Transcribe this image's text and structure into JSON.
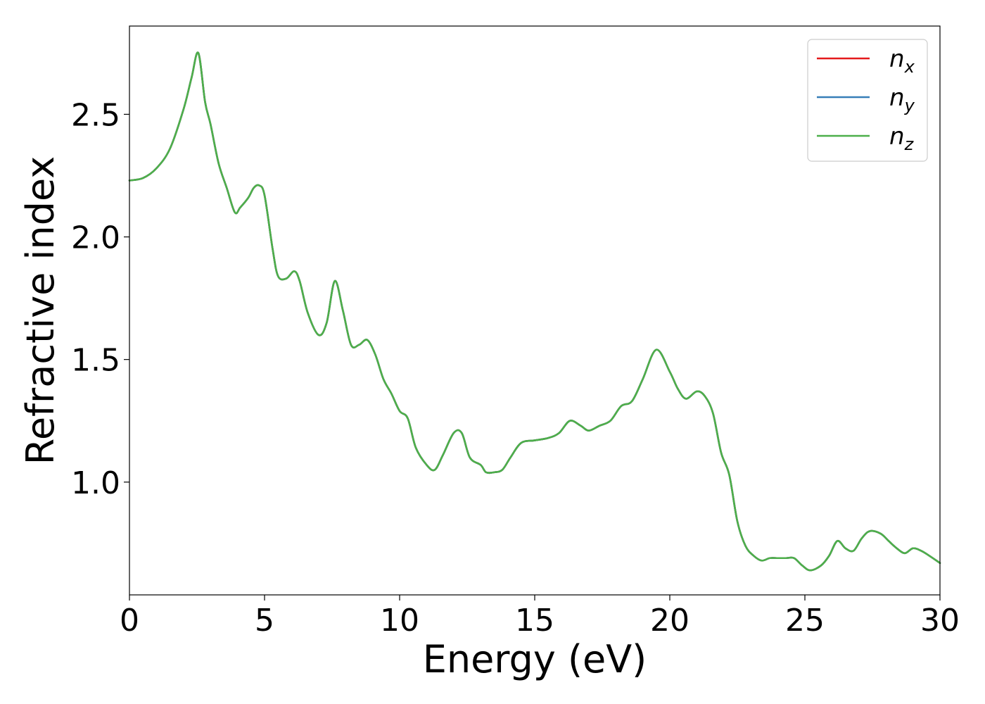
{
  "chart_data": {
    "type": "line",
    "xlabel": "Energy (eV)",
    "ylabel": "Refractive index",
    "xlim": [
      0,
      30
    ],
    "ylim": [
      0.54,
      2.86
    ],
    "xticks": [
      0,
      5,
      10,
      15,
      20,
      25,
      30
    ],
    "xtick_labels": [
      "0",
      "5",
      "10",
      "15",
      "20",
      "25",
      "30"
    ],
    "yticks": [
      1.0,
      1.5,
      2.0,
      2.5
    ],
    "ytick_labels": [
      "1.0",
      "1.5",
      "2.0",
      "2.5"
    ],
    "grid": false,
    "legend_position": "top-right",
    "x": [
      0,
      0.5,
      1.0,
      1.5,
      2.0,
      2.3,
      2.55,
      2.8,
      3.0,
      3.3,
      3.6,
      3.9,
      4.1,
      4.4,
      4.6,
      4.8,
      5.0,
      5.3,
      5.5,
      5.8,
      6.1,
      6.3,
      6.6,
      7.0,
      7.3,
      7.6,
      7.9,
      8.2,
      8.5,
      8.8,
      9.1,
      9.4,
      9.7,
      10.0,
      10.3,
      10.6,
      11.0,
      11.3,
      11.6,
      12.0,
      12.3,
      12.6,
      13.0,
      13.2,
      13.5,
      13.8,
      14.1,
      14.5,
      15.0,
      15.5,
      15.9,
      16.3,
      16.7,
      17.0,
      17.4,
      17.8,
      18.2,
      18.6,
      19.0,
      19.5,
      20.0,
      20.3,
      20.6,
      21.0,
      21.3,
      21.6,
      21.9,
      22.2,
      22.5,
      22.8,
      23.1,
      23.4,
      23.7,
      24.0,
      24.3,
      24.6,
      24.9,
      25.2,
      25.6,
      25.9,
      26.2,
      26.5,
      26.8,
      27.1,
      27.4,
      27.8,
      28.1,
      28.4,
      28.7,
      29.0,
      29.3,
      29.6,
      30.0
    ],
    "series": [
      {
        "name": "n_x",
        "label_base": "n",
        "label_sub": "x",
        "color": "#e41a1c",
        "values": [
          2.23,
          2.24,
          2.28,
          2.36,
          2.52,
          2.65,
          2.75,
          2.55,
          2.46,
          2.3,
          2.2,
          2.1,
          2.12,
          2.16,
          2.2,
          2.21,
          2.17,
          1.95,
          1.84,
          1.83,
          1.86,
          1.82,
          1.69,
          1.6,
          1.65,
          1.82,
          1.7,
          1.56,
          1.56,
          1.58,
          1.52,
          1.42,
          1.36,
          1.29,
          1.26,
          1.14,
          1.07,
          1.05,
          1.11,
          1.2,
          1.2,
          1.1,
          1.07,
          1.04,
          1.04,
          1.05,
          1.1,
          1.16,
          1.17,
          1.18,
          1.2,
          1.25,
          1.23,
          1.21,
          1.23,
          1.25,
          1.31,
          1.33,
          1.42,
          1.54,
          1.45,
          1.38,
          1.34,
          1.37,
          1.35,
          1.28,
          1.12,
          1.03,
          0.84,
          0.74,
          0.7,
          0.68,
          0.69,
          0.69,
          0.69,
          0.69,
          0.66,
          0.64,
          0.66,
          0.7,
          0.76,
          0.73,
          0.72,
          0.77,
          0.8,
          0.79,
          0.76,
          0.73,
          0.71,
          0.73,
          0.72,
          0.7,
          0.67
        ]
      },
      {
        "name": "n_y",
        "label_base": "n",
        "label_sub": "y",
        "color": "#377eb8",
        "values": [
          2.23,
          2.24,
          2.28,
          2.36,
          2.52,
          2.65,
          2.75,
          2.55,
          2.46,
          2.3,
          2.2,
          2.1,
          2.12,
          2.16,
          2.2,
          2.21,
          2.17,
          1.95,
          1.84,
          1.83,
          1.86,
          1.82,
          1.69,
          1.6,
          1.65,
          1.82,
          1.7,
          1.56,
          1.56,
          1.58,
          1.52,
          1.42,
          1.36,
          1.29,
          1.26,
          1.14,
          1.07,
          1.05,
          1.11,
          1.2,
          1.2,
          1.1,
          1.07,
          1.04,
          1.04,
          1.05,
          1.1,
          1.16,
          1.17,
          1.18,
          1.2,
          1.25,
          1.23,
          1.21,
          1.23,
          1.25,
          1.31,
          1.33,
          1.42,
          1.54,
          1.45,
          1.38,
          1.34,
          1.37,
          1.35,
          1.28,
          1.12,
          1.03,
          0.84,
          0.74,
          0.7,
          0.68,
          0.69,
          0.69,
          0.69,
          0.69,
          0.66,
          0.64,
          0.66,
          0.7,
          0.76,
          0.73,
          0.72,
          0.77,
          0.8,
          0.79,
          0.76,
          0.73,
          0.71,
          0.73,
          0.72,
          0.7,
          0.67
        ]
      },
      {
        "name": "n_z",
        "label_base": "n",
        "label_sub": "z",
        "color": "#4daf4a",
        "values": [
          2.23,
          2.24,
          2.28,
          2.36,
          2.52,
          2.65,
          2.75,
          2.55,
          2.46,
          2.3,
          2.2,
          2.1,
          2.12,
          2.16,
          2.2,
          2.21,
          2.17,
          1.95,
          1.84,
          1.83,
          1.86,
          1.82,
          1.69,
          1.6,
          1.65,
          1.82,
          1.7,
          1.56,
          1.56,
          1.58,
          1.52,
          1.42,
          1.36,
          1.29,
          1.26,
          1.14,
          1.07,
          1.05,
          1.11,
          1.2,
          1.2,
          1.1,
          1.07,
          1.04,
          1.04,
          1.05,
          1.1,
          1.16,
          1.17,
          1.18,
          1.2,
          1.25,
          1.23,
          1.21,
          1.23,
          1.25,
          1.31,
          1.33,
          1.42,
          1.54,
          1.45,
          1.38,
          1.34,
          1.37,
          1.35,
          1.28,
          1.12,
          1.03,
          0.84,
          0.74,
          0.7,
          0.68,
          0.69,
          0.69,
          0.69,
          0.69,
          0.66,
          0.64,
          0.66,
          0.7,
          0.76,
          0.73,
          0.72,
          0.77,
          0.8,
          0.79,
          0.76,
          0.73,
          0.71,
          0.73,
          0.72,
          0.7,
          0.67
        ]
      }
    ]
  }
}
